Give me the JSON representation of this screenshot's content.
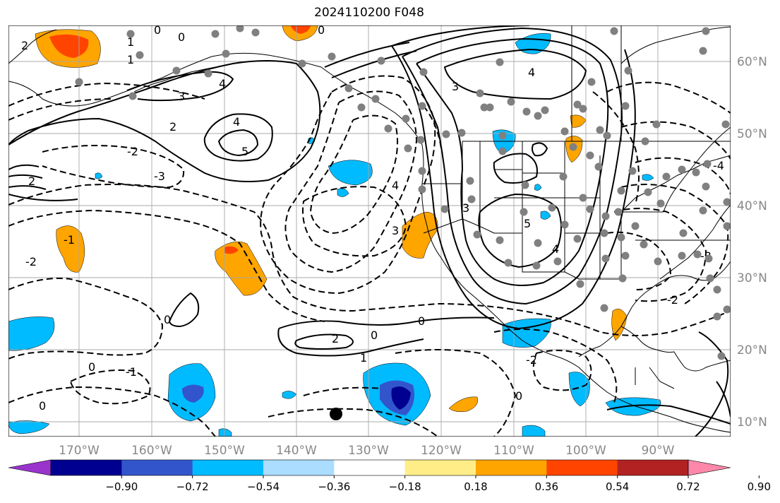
{
  "title": "2024110200 F048",
  "map": {
    "lon_labels": [
      "170°W",
      "160°W",
      "150°W",
      "140°W",
      "130°W",
      "120°W",
      "110°W",
      "100°W",
      "90°W"
    ],
    "lat_labels": [
      "60°N",
      "50°N",
      "40°N",
      "30°N",
      "20°N",
      "10°N"
    ],
    "contour_labels": [
      "0",
      "1",
      "2",
      "3",
      "4",
      "5",
      "-1",
      "-2",
      "-3",
      "-4"
    ],
    "colors": {
      "strong_neg_purple": "#9933cc",
      "neg_navy": "#000090",
      "neg_blue": "#3355cc",
      "neg_cyan": "#00bbff",
      "neg_lightblue": "#aaddff",
      "neutral": "#ffffff",
      "pos_yellow": "#ffee88",
      "pos_orange": "#ffa500",
      "pos_redorange": "#ff4400",
      "pos_darkred": "#b22222",
      "pos_pink": "#ff88aa",
      "station_dot": "#808080"
    }
  },
  "colorbar": {
    "ticks": [
      "−0.90",
      "−0.72",
      "−0.54",
      "−0.36",
      "−0.18",
      "0.18",
      "0.36",
      "0.54",
      "0.72",
      "0.90"
    ],
    "bins": [
      "#9933cc",
      "#000090",
      "#3355cc",
      "#00bbff",
      "#aaddff",
      "#ffffff",
      "#ffee88",
      "#ffa500",
      "#ff4400",
      "#b22222",
      "#ff88aa"
    ]
  }
}
